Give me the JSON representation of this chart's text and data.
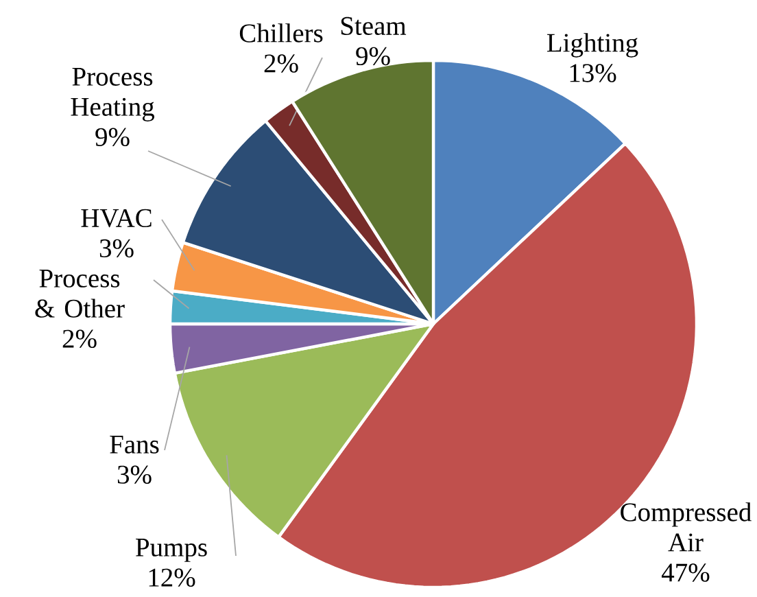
{
  "chart_data": {
    "type": "pie",
    "categories": [
      "Lighting",
      "Compressed Air",
      "Pumps",
      "Fans",
      "Process & Other",
      "HVAC",
      "Process Heating",
      "Chillers",
      "Steam"
    ],
    "values": [
      13,
      47,
      12,
      3,
      2,
      3,
      9,
      2,
      9
    ],
    "value_labels": [
      "13%",
      "47%",
      "12%",
      "3%",
      "2%",
      "3%",
      "9%",
      "2%",
      "9%"
    ],
    "colors": [
      "#4f81bd",
      "#c0504d",
      "#9bbb59",
      "#8064a2",
      "#4bacc6",
      "#f79646",
      "#2c4d75",
      "#772c2a",
      "#5f7530"
    ]
  }
}
